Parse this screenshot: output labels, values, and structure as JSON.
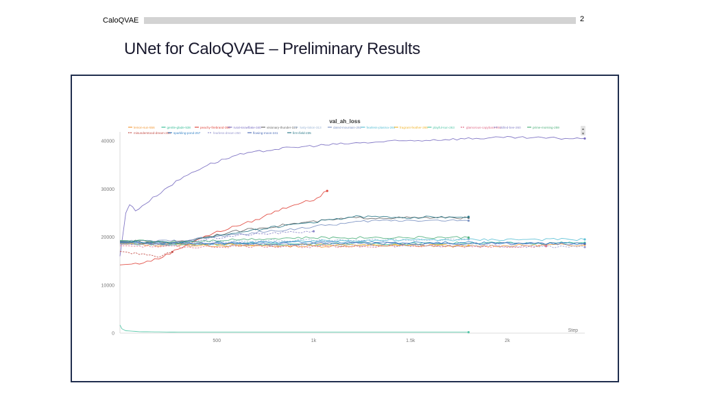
{
  "header": {
    "section": "CaloQVAE",
    "page_number": "2"
  },
  "slide": {
    "title": "UNet for CaloQVAE – Preliminary Results"
  },
  "chart_data": {
    "type": "line",
    "title": "val_ah_loss",
    "xlabel": "Step",
    "ylabel": "",
    "xlim": [
      0,
      2400
    ],
    "ylim": [
      0,
      41000
    ],
    "x_ticks": [
      {
        "v": 500,
        "label": "500"
      },
      {
        "v": 1000,
        "label": "1k"
      },
      {
        "v": 1500,
        "label": "1.5k"
      },
      {
        "v": 2000,
        "label": "2k"
      }
    ],
    "y_ticks": [
      {
        "v": 0,
        "label": "0"
      },
      {
        "v": 10000,
        "label": "10000"
      },
      {
        "v": 20000,
        "label": "20000"
      },
      {
        "v": 30000,
        "label": "30000"
      },
      {
        "v": 40000,
        "label": "40000"
      }
    ],
    "grid": false,
    "legend_position": "top",
    "series": [
      {
        "name": "lemon-sun-556",
        "color": "#f29b3c",
        "dash": false,
        "points": [
          [
            0,
            18500
          ],
          [
            200,
            18300
          ],
          [
            600,
            18200
          ],
          [
            1000,
            18100
          ],
          [
            1400,
            18200
          ],
          [
            1800,
            18100
          ],
          [
            2200,
            18300
          ],
          [
            2400,
            18400
          ]
        ]
      },
      {
        "name": "gentle-glade-538",
        "color": "#3cbf9a",
        "dash": false,
        "points": [
          [
            0,
            19000
          ],
          [
            100,
            18600
          ],
          [
            300,
            18400
          ],
          [
            600,
            18600
          ],
          [
            900,
            18500
          ],
          [
            1200,
            18700
          ],
          [
            1500,
            18600
          ],
          [
            1800,
            18800
          ],
          [
            2100,
            18700
          ],
          [
            2400,
            18800
          ]
        ]
      },
      {
        "name": "peachy-firebrand-358",
        "color": "#e0493f",
        "dash": false,
        "points": [
          [
            0,
            14200
          ],
          [
            100,
            14500
          ],
          [
            200,
            15500
          ],
          [
            300,
            17500
          ],
          [
            400,
            19500
          ],
          [
            500,
            21000
          ],
          [
            600,
            22300
          ],
          [
            700,
            23500
          ],
          [
            800,
            25300
          ],
          [
            900,
            26800
          ],
          [
            1000,
            27700
          ],
          [
            1070,
            29600
          ]
        ]
      },
      {
        "name": "rural-snowflake-340",
        "color": "#7a6fc2",
        "dash": false,
        "points": [
          [
            0,
            16000
          ],
          [
            10,
            19000
          ],
          [
            30,
            25000
          ],
          [
            50,
            26800
          ],
          [
            80,
            25500
          ],
          [
            150,
            27500
          ],
          [
            250,
            30500
          ],
          [
            350,
            33000
          ],
          [
            450,
            35000
          ],
          [
            600,
            37000
          ],
          [
            800,
            38300
          ],
          [
            1000,
            39000
          ],
          [
            1200,
            39500
          ],
          [
            1400,
            39900
          ],
          [
            1600,
            40200
          ],
          [
            1800,
            40500
          ],
          [
            2000,
            40700
          ],
          [
            2200,
            40600
          ],
          [
            2400,
            40500
          ]
        ]
      },
      {
        "name": "visionary-thunder-321",
        "color": "#6a6a6a",
        "dash": false,
        "points": [
          [
            0,
            19200
          ],
          [
            300,
            19000
          ],
          [
            600,
            21200
          ],
          [
            900,
            22800
          ],
          [
            1200,
            24000
          ],
          [
            1500,
            24000
          ],
          [
            1800,
            24000
          ]
        ]
      },
      {
        "name": "lusty-lotion-313",
        "color": "#9db6d6",
        "dash": true,
        "points": [
          [
            0,
            18800
          ],
          [
            300,
            18700
          ],
          [
            600,
            19200
          ],
          [
            900,
            19300
          ],
          [
            1200,
            19300
          ],
          [
            1500,
            19400
          ],
          [
            1800,
            19500
          ]
        ]
      },
      {
        "name": "dated-mountain-292",
        "color": "#7e95c4",
        "dash": false,
        "points": [
          [
            0,
            19100
          ],
          [
            300,
            19200
          ],
          [
            600,
            20500
          ],
          [
            900,
            21700
          ],
          [
            1100,
            22600
          ],
          [
            1300,
            23400
          ],
          [
            1500,
            23500
          ],
          [
            1800,
            23400
          ]
        ]
      },
      {
        "name": "fearless-plasma-266",
        "color": "#5dc1d6",
        "dash": false,
        "points": [
          [
            0,
            18600
          ],
          [
            400,
            18500
          ],
          [
            800,
            18900
          ],
          [
            1200,
            19300
          ],
          [
            1600,
            19400
          ],
          [
            2000,
            19500
          ],
          [
            2400,
            19500
          ]
        ]
      },
      {
        "name": "fragrant-feather-265",
        "color": "#f1b733",
        "dash": false,
        "points": [
          [
            0,
            18700
          ],
          [
            400,
            18500
          ],
          [
            800,
            18300
          ],
          [
            1200,
            18400
          ],
          [
            1600,
            18300
          ],
          [
            1800,
            18200
          ]
        ]
      },
      {
        "name": "playful-sun-263",
        "color": "#54c7a8",
        "dash": false,
        "points": [
          [
            0,
            1700
          ],
          [
            10,
            900
          ],
          [
            30,
            500
          ],
          [
            100,
            300
          ],
          [
            300,
            200
          ],
          [
            1000,
            200
          ],
          [
            1800,
            200
          ]
        ]
      },
      {
        "name": "glamorous-capybara-261",
        "color": "#e06f8b",
        "dash": true,
        "points": [
          [
            0,
            18200
          ],
          [
            200,
            18000
          ],
          [
            400,
            17900
          ],
          [
            700,
            18100
          ],
          [
            1000,
            18000
          ],
          [
            1400,
            18100
          ],
          [
            1800,
            18000
          ],
          [
            2200,
            18100
          ]
        ]
      },
      {
        "name": "skilled-bee-260",
        "color": "#8b87c9",
        "dash": true,
        "points": [
          [
            0,
            18600
          ],
          [
            200,
            18400
          ],
          [
            400,
            19300
          ],
          [
            600,
            20300
          ],
          [
            800,
            20800
          ],
          [
            1000,
            21200
          ]
        ]
      },
      {
        "name": "prime-morning-259",
        "color": "#4eb07c",
        "dash": false,
        "points": [
          [
            0,
            19300
          ],
          [
            300,
            19000
          ],
          [
            600,
            19500
          ],
          [
            900,
            19800
          ],
          [
            1200,
            19900
          ],
          [
            1500,
            19900
          ],
          [
            1800,
            19900
          ]
        ]
      },
      {
        "name": "misunderstood-dream-258",
        "color": "#c4504a",
        "dash": true,
        "points": [
          [
            0,
            17000
          ],
          [
            100,
            16600
          ],
          [
            200,
            15900
          ],
          [
            250,
            16700
          ],
          [
            270,
            16900
          ]
        ]
      },
      {
        "name": "sparkling-pond-257",
        "color": "#3a86c8",
        "dash": false,
        "points": [
          [
            0,
            18900
          ],
          [
            300,
            18700
          ],
          [
            600,
            18800
          ],
          [
            900,
            18900
          ],
          [
            1200,
            18900
          ],
          [
            1500,
            18900
          ],
          [
            1800,
            18800
          ],
          [
            2100,
            18700
          ],
          [
            2400,
            18600
          ]
        ]
      },
      {
        "name": "fearless-dream-250",
        "color": "#9a9ad0",
        "dash": true,
        "points": [
          [
            0,
            18500
          ],
          [
            400,
            18400
          ],
          [
            800,
            18300
          ],
          [
            1200,
            18300
          ],
          [
            1600,
            18200
          ],
          [
            2000,
            18100
          ],
          [
            2400,
            17900
          ]
        ]
      },
      {
        "name": "flowing-moon-241",
        "color": "#4f6fb8",
        "dash": false,
        "points": [
          [
            0,
            18800
          ],
          [
            400,
            18700
          ],
          [
            800,
            18600
          ],
          [
            1200,
            18700
          ],
          [
            1600,
            18600
          ],
          [
            2000,
            18600
          ],
          [
            2400,
            18600
          ]
        ]
      },
      {
        "name": "firm-field-235",
        "color": "#2d7a8a",
        "dash": false,
        "points": [
          [
            0,
            19000
          ],
          [
            300,
            18800
          ],
          [
            600,
            21000
          ],
          [
            900,
            22600
          ],
          [
            1200,
            24200
          ],
          [
            1500,
            24100
          ],
          [
            1800,
            24200
          ]
        ]
      }
    ]
  }
}
